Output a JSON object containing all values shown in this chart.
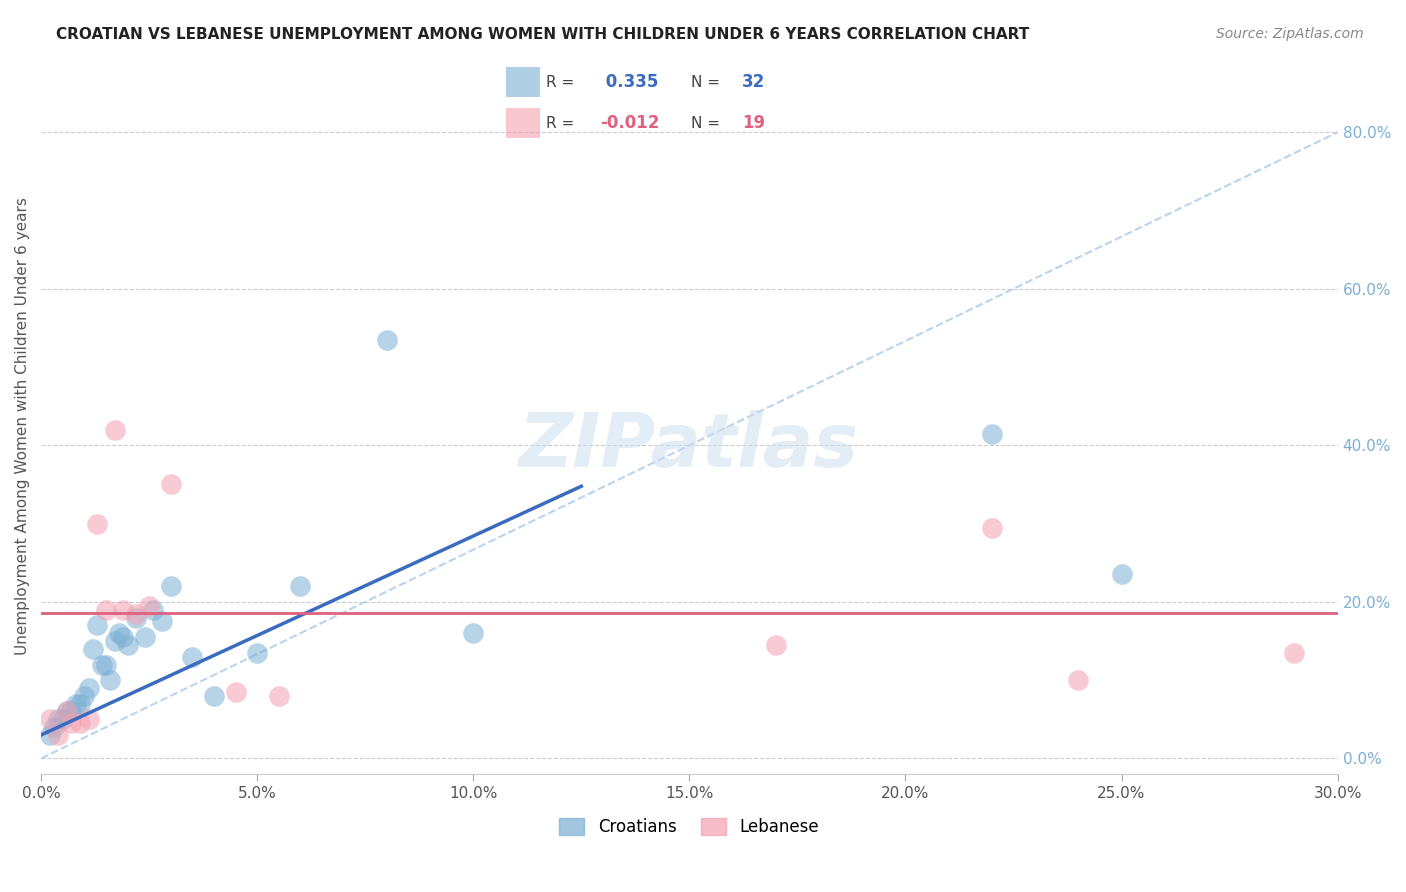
{
  "title": "CROATIAN VS LEBANESE UNEMPLOYMENT AMONG WOMEN WITH CHILDREN UNDER 6 YEARS CORRELATION CHART",
  "source": "Source: ZipAtlas.com",
  "ylabel": "Unemployment Among Women with Children Under 6 years",
  "legend_croatians": "Croatians",
  "legend_lebanese": "Lebanese",
  "croatian_R": 0.335,
  "croatian_N": 32,
  "lebanese_R": -0.012,
  "lebanese_N": 19,
  "xlim": [
    0.0,
    0.3
  ],
  "ylim": [
    -0.02,
    0.87
  ],
  "xticks": [
    0.0,
    0.05,
    0.1,
    0.15,
    0.2,
    0.25,
    0.3
  ],
  "yticks_right": [
    0.0,
    0.2,
    0.4,
    0.6,
    0.8
  ],
  "croatian_color": "#7bafd4",
  "lebanese_color": "#f4a0b0",
  "croatian_line_color": "#3a6bbf",
  "lebanese_line_color": "#e06080",
  "dashed_line_color": "#b8d4ee",
  "watermark": "ZIPatlas",
  "croatian_x": [
    0.002,
    0.003,
    0.004,
    0.005,
    0.006,
    0.007,
    0.008,
    0.009,
    0.01,
    0.011,
    0.012,
    0.013,
    0.014,
    0.015,
    0.016,
    0.017,
    0.018,
    0.019,
    0.02,
    0.022,
    0.024,
    0.026,
    0.028,
    0.03,
    0.035,
    0.04,
    0.05,
    0.06,
    0.08,
    0.1,
    0.22,
    0.25
  ],
  "croatian_y": [
    0.03,
    0.04,
    0.05,
    0.05,
    0.06,
    0.06,
    0.07,
    0.07,
    0.08,
    0.09,
    0.14,
    0.17,
    0.12,
    0.12,
    0.1,
    0.15,
    0.16,
    0.155,
    0.145,
    0.18,
    0.155,
    0.19,
    0.175,
    0.22,
    0.13,
    0.08,
    0.135,
    0.22,
    0.535,
    0.16,
    0.415,
    0.235
  ],
  "lebanese_x": [
    0.002,
    0.004,
    0.006,
    0.007,
    0.009,
    0.011,
    0.013,
    0.015,
    0.017,
    0.019,
    0.022,
    0.025,
    0.03,
    0.045,
    0.055,
    0.17,
    0.22,
    0.24,
    0.29
  ],
  "lebanese_y": [
    0.05,
    0.03,
    0.06,
    0.045,
    0.045,
    0.05,
    0.3,
    0.19,
    0.42,
    0.19,
    0.185,
    0.195,
    0.35,
    0.085,
    0.08,
    0.145,
    0.295,
    0.1,
    0.135
  ],
  "cr_line_x0": 0.0,
  "cr_line_y0": 0.03,
  "cr_line_x1": 0.12,
  "cr_line_y1": 0.335,
  "lb_line_y": 0.186
}
